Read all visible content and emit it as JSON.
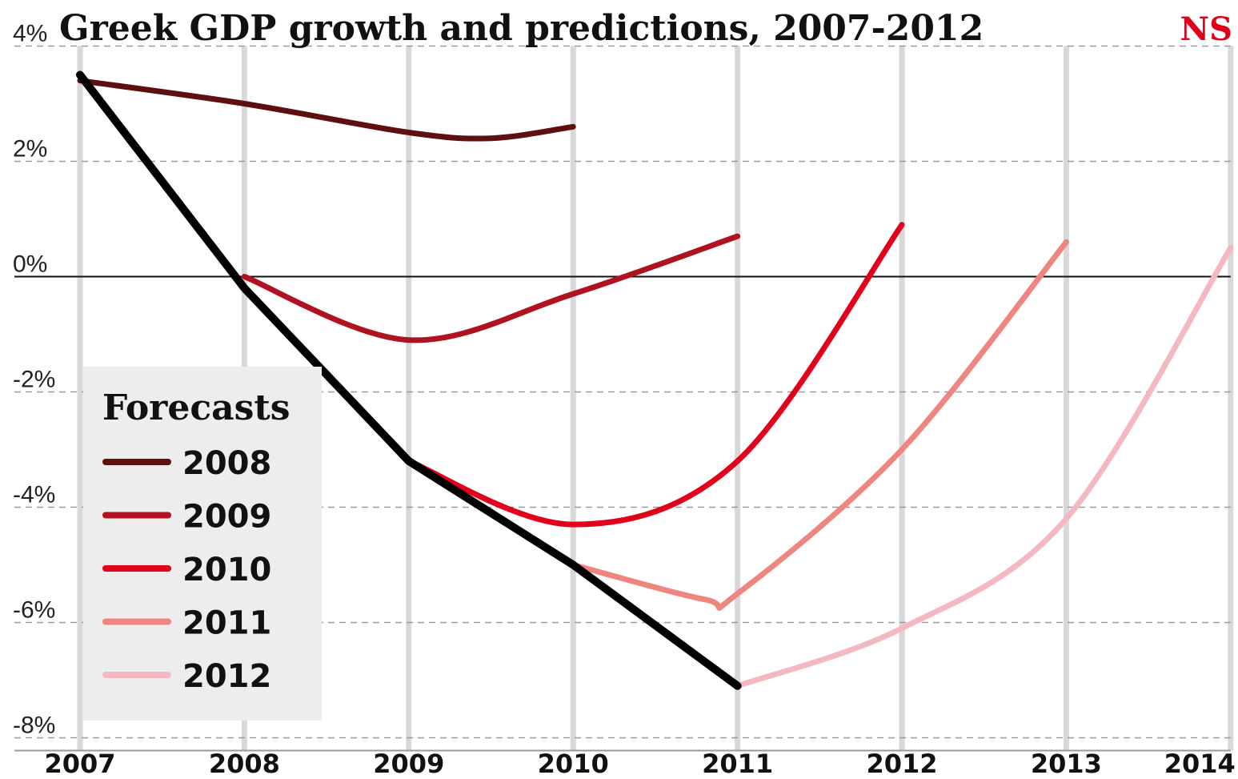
{
  "brand": {
    "text": "NS",
    "color": "#e0001a"
  },
  "chart_data": {
    "type": "line",
    "title": "Greek GDP growth and predictions, 2007-2012",
    "xlabel": "",
    "ylabel": "",
    "x_ticks": [
      "2007",
      "2008",
      "2009",
      "2010",
      "2011",
      "2012",
      "2013",
      "2014"
    ],
    "y_ticks": [
      "4%",
      "2%",
      "0%",
      "-2%",
      "-4%",
      "-6%",
      "-8%"
    ],
    "xlim": [
      2007,
      2014
    ],
    "ylim": [
      -8,
      4
    ],
    "grid": {
      "horizontal": "dashed",
      "vertical": "solid",
      "zero_line": true
    },
    "legend": {
      "title": "Forecasts",
      "position": "bottom-left"
    },
    "actual": {
      "color": "#000000",
      "points": [
        [
          2007,
          3.5
        ],
        [
          2008,
          -0.2
        ],
        [
          2009,
          -3.2
        ],
        [
          2010,
          -5.0
        ],
        [
          2011,
          -7.1
        ]
      ]
    },
    "series": [
      {
        "name": "2008",
        "color": "#5e0f0f",
        "points": [
          [
            2007,
            3.4
          ],
          [
            2008,
            3.0
          ],
          [
            2009,
            2.5
          ],
          [
            2009.5,
            2.4
          ],
          [
            2010,
            2.6
          ]
        ]
      },
      {
        "name": "2009",
        "color": "#b0121f",
        "points": [
          [
            2008,
            0.0
          ],
          [
            2009,
            -1.1
          ],
          [
            2010,
            -0.3
          ],
          [
            2011,
            0.7
          ]
        ]
      },
      {
        "name": "2010",
        "color": "#e3001b",
        "points": [
          [
            2009,
            -3.2
          ],
          [
            2010,
            -4.3
          ],
          [
            2011,
            -3.2
          ],
          [
            2012,
            0.9
          ]
        ]
      },
      {
        "name": "2011",
        "color": "#ee857f",
        "points": [
          [
            2010,
            -5.0
          ],
          [
            2010.8,
            -5.6
          ],
          [
            2011,
            -5.5
          ],
          [
            2012,
            -3.0
          ],
          [
            2013,
            0.6
          ]
        ]
      },
      {
        "name": "2012",
        "color": "#f4b8c0",
        "points": [
          [
            2011,
            -7.1
          ],
          [
            2012,
            -6.1
          ],
          [
            2013,
            -4.2
          ],
          [
            2014,
            0.5
          ]
        ]
      }
    ]
  }
}
